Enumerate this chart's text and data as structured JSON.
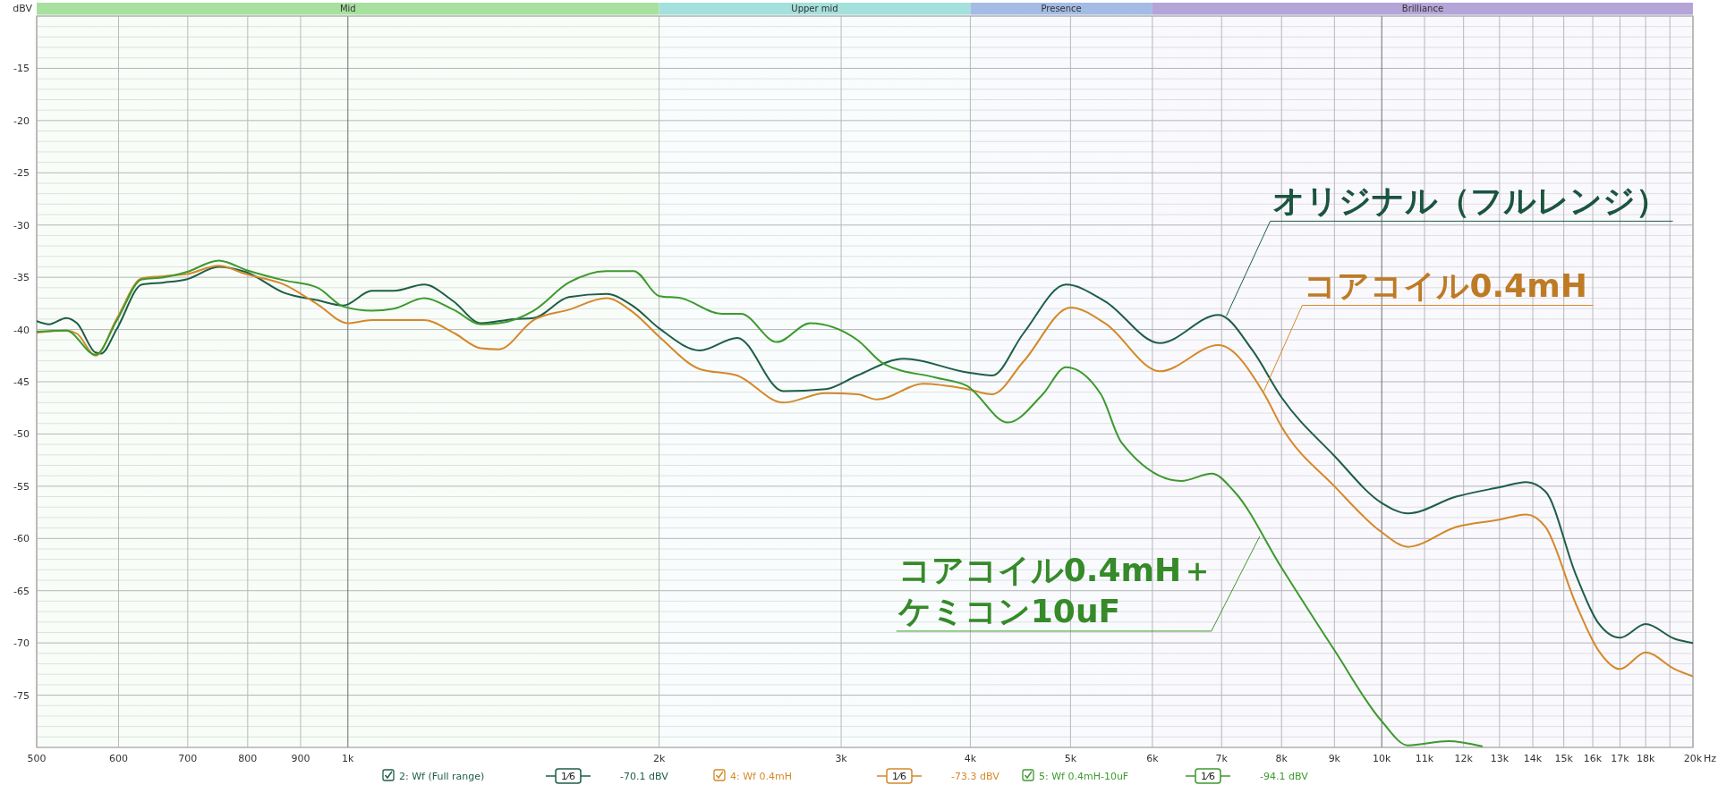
{
  "chart_data": {
    "type": "line",
    "ylabel": "dBV",
    "log": "x",
    "grid": true,
    "legend": "bottom",
    "xlim": [
      500,
      20000
    ],
    "ylim": [
      -80,
      -10
    ],
    "xticks": [
      500,
      600,
      700,
      800,
      900,
      {
        "value": 1000,
        "label": "1k"
      },
      {
        "value": 2000,
        "label": "2k"
      },
      {
        "value": 3000,
        "label": "3k"
      },
      {
        "value": 4000,
        "label": "4k"
      },
      {
        "value": 5000,
        "label": "5k"
      },
      {
        "value": 6000,
        "label": "6k"
      },
      {
        "value": 7000,
        "label": "7k"
      },
      {
        "value": 8000,
        "label": "8k"
      },
      {
        "value": 9000,
        "label": "9k"
      },
      {
        "value": 10000,
        "label": "10k"
      },
      {
        "value": 11000,
        "label": "11k"
      },
      {
        "value": 12000,
        "label": "12k"
      },
      {
        "value": 13000,
        "label": "13k"
      },
      {
        "value": 14000,
        "label": "14k"
      },
      {
        "value": 15000,
        "label": "15k"
      },
      {
        "value": 16000,
        "label": "16k"
      },
      {
        "value": 17000,
        "label": "17k"
      },
      {
        "value": 18000,
        "label": "18k"
      },
      {
        "value": 19000,
        "label": null
      },
      {
        "value": 20000,
        "label": "20k"
      }
    ],
    "xlabel": "Hz",
    "yticks": [
      {
        "value": -10,
        "label": null
      },
      {
        "value": -11,
        "label": null
      },
      {
        "value": -12,
        "label": null
      },
      {
        "value": -13,
        "label": null
      },
      {
        "value": -14,
        "label": null
      },
      -15,
      {
        "value": -16,
        "label": null
      },
      {
        "value": -17,
        "label": null
      },
      {
        "value": -18,
        "label": null
      },
      {
        "value": -19,
        "label": null
      },
      -20,
      {
        "value": -21,
        "label": null
      },
      {
        "value": -22,
        "label": null
      },
      {
        "value": -23,
        "label": null
      },
      {
        "value": -24,
        "label": null
      },
      -25,
      {
        "value": -26,
        "label": null
      },
      {
        "value": -27,
        "label": null
      },
      {
        "value": -28,
        "label": null
      },
      {
        "value": -29,
        "label": null
      },
      -30,
      {
        "value": -31,
        "label": null
      },
      {
        "value": -32,
        "label": null
      },
      {
        "value": -33,
        "label": null
      },
      {
        "value": -34,
        "label": null
      },
      -35,
      {
        "value": -36,
        "label": null
      },
      {
        "value": -37,
        "label": null
      },
      {
        "value": -38,
        "label": null
      },
      {
        "value": -39,
        "label": null
      },
      -40,
      {
        "value": -41,
        "label": null
      },
      {
        "value": -42,
        "label": null
      },
      {
        "value": -43,
        "label": null
      },
      {
        "value": -44,
        "label": null
      },
      -45,
      {
        "value": -46,
        "label": null
      },
      {
        "value": -47,
        "label": null
      },
      {
        "value": -48,
        "label": null
      },
      {
        "value": -49,
        "label": null
      },
      -50,
      {
        "value": -51,
        "label": null
      },
      {
        "value": -52,
        "label": null
      },
      {
        "value": -53,
        "label": null
      },
      {
        "value": -54,
        "label": null
      },
      -55,
      {
        "value": -56,
        "label": null
      },
      {
        "value": -57,
        "label": null
      },
      {
        "value": -58,
        "label": null
      },
      {
        "value": -59,
        "label": null
      },
      -60,
      {
        "value": -61,
        "label": null
      },
      {
        "value": -62,
        "label": null
      },
      {
        "value": -63,
        "label": null
      },
      {
        "value": -64,
        "label": null
      },
      -65,
      {
        "value": -66,
        "label": null
      },
      {
        "value": -67,
        "label": null
      },
      {
        "value": -68,
        "label": null
      },
      {
        "value": -69,
        "label": null
      },
      -70,
      {
        "value": -71,
        "label": null
      },
      {
        "value": -72,
        "label": null
      },
      {
        "value": -73,
        "label": null
      },
      {
        "value": -74,
        "label": null
      },
      -75,
      {
        "value": -76,
        "label": null
      },
      {
        "value": -77,
        "label": null
      },
      {
        "value": -78,
        "label": null
      },
      {
        "value": -79,
        "label": null
      },
      {
        "value": -80,
        "label": null
      }
    ],
    "bands": [
      {
        "axis": "x",
        "from": 500,
        "to": 2000,
        "label": "Mid",
        "color": "#a8e0a0"
      },
      {
        "axis": "x",
        "from": 2000,
        "to": 4000,
        "label": "Upper mid",
        "color": "#a4e0dc"
      },
      {
        "axis": "x",
        "from": 4000,
        "to": 6000,
        "label": "Presence",
        "color": "#a4bce4"
      },
      {
        "axis": "x",
        "from": 6000,
        "to": 20000,
        "label": "Brilliance",
        "color": "#b4a4d8"
      }
    ],
    "series": [
      {
        "name": "2: Wf (Full range)",
        "color": "#1e5e46",
        "x": [
          500,
          514,
          534,
          547,
          570,
          577,
          598,
          632,
          664,
          698,
          750,
          797,
          868,
          935,
          990,
          1055,
          1108,
          1185,
          1265,
          1345,
          1446,
          1512,
          1636,
          1778,
          1890,
          2001,
          2191,
          2380,
          2636,
          2898,
          3110,
          3450,
          3970,
          4200,
          4500,
          4950,
          5400,
          6100,
          6950,
          7500,
          8000,
          9000,
          10000,
          10600,
          11800,
          13000,
          13800,
          14400,
          15400,
          16200,
          17000,
          18000,
          19200,
          20000
        ],
        "values": [
          -39.2,
          -39.5,
          -38.9,
          -39.4,
          -42.2,
          -42.3,
          -39.9,
          -35.7,
          -35.5,
          -35.2,
          -34.0,
          -34.5,
          -36.5,
          -37.2,
          -37.7,
          -36.3,
          -36.3,
          -35.7,
          -37.3,
          -39.4,
          -39.0,
          -38.9,
          -36.9,
          -36.6,
          -37.8,
          -39.9,
          -42.0,
          -40.8,
          -45.9,
          -45.7,
          -44.4,
          -42.8,
          -44.1,
          -44.4,
          -40.4,
          -35.7,
          -37.3,
          -41.3,
          -38.6,
          -42.0,
          -46.5,
          -52.1,
          -56.6,
          -57.6,
          -56.0,
          -55.1,
          -54.6,
          -55.5,
          -63.4,
          -68.1,
          -69.5,
          -68.2,
          -69.6,
          -70.0
        ]
      },
      {
        "name": "4: Wf 0.4mH",
        "color": "#d4892a",
        "x": [
          500,
          534,
          547,
          570,
          598,
          632,
          664,
          698,
          750,
          797,
          868,
          935,
          1000,
          1055,
          1185,
          1265,
          1345,
          1400,
          1512,
          1636,
          1778,
          1890,
          2001,
          2191,
          2380,
          2636,
          2898,
          3110,
          3250,
          3600,
          3970,
          4200,
          4500,
          5000,
          5400,
          6100,
          6950,
          7700,
          8000,
          9000,
          10000,
          10600,
          11800,
          13000,
          13800,
          14400,
          15400,
          16200,
          17000,
          18000,
          19200,
          20000
        ],
        "values": [
          -40.3,
          -40.1,
          -40.4,
          -42.5,
          -38.9,
          -35.1,
          -34.9,
          -34.7,
          -33.9,
          -34.7,
          -35.7,
          -37.6,
          -39.4,
          -39.1,
          -39.1,
          -40.3,
          -41.8,
          -41.9,
          -39.1,
          -38.1,
          -37.0,
          -38.4,
          -40.7,
          -43.8,
          -44.4,
          -47.0,
          -46.1,
          -46.2,
          -46.7,
          -45.2,
          -45.7,
          -46.2,
          -43.1,
          -37.9,
          -39.4,
          -44.0,
          -41.5,
          -46.2,
          -49.3,
          -55.0,
          -59.4,
          -60.8,
          -58.9,
          -58.2,
          -57.7,
          -58.9,
          -66.2,
          -70.7,
          -72.5,
          -70.9,
          -72.5,
          -73.2
        ]
      },
      {
        "name": "5: Wf 0.4mH-10uF",
        "color": "#3c9a2e",
        "x": [
          500,
          534,
          570,
          598,
          632,
          664,
          698,
          750,
          797,
          868,
          935,
          990,
          1055,
          1108,
          1185,
          1265,
          1345,
          1400,
          1512,
          1636,
          1778,
          1890,
          2001,
          2100,
          2300,
          2400,
          2600,
          2800,
          3110,
          3300,
          3700,
          3970,
          4350,
          4700,
          4950,
          5350,
          5600,
          6400,
          6850,
          7200,
          8000,
          9000,
          10000,
          10600,
          11600,
          12500
        ],
        "values": [
          -40.2,
          -40.1,
          -42.4,
          -39.1,
          -35.2,
          -35.0,
          -34.5,
          -33.4,
          -34.3,
          -35.3,
          -36.0,
          -37.8,
          -38.2,
          -38.0,
          -37.0,
          -38.1,
          -39.5,
          -39.4,
          -38.2,
          -35.5,
          -34.4,
          -34.4,
          -36.8,
          -37.0,
          -38.5,
          -38.5,
          -41.2,
          -39.4,
          -41.0,
          -43.3,
          -44.6,
          -45.4,
          -48.9,
          -46.2,
          -43.6,
          -46.2,
          -50.8,
          -54.5,
          -53.8,
          -55.5,
          -62.8,
          -70.7,
          -77.5,
          -79.8,
          -79.4,
          -79.9
        ]
      }
    ],
    "annotations": [
      {
        "text": "オリジナル（フルレンジ）",
        "x": 7075,
        "y": -38.7
      },
      {
        "text": "コアコイル0.4mH",
        "x": 7690,
        "y": -45.9
      },
      {
        "text": "コアコイル0.4mH＋ケミコン10uF",
        "x": 7620,
        "y": -59.8
      },
      "1⁄6",
      "-70.1 dBV",
      "1⁄6",
      "-73.3 dBV",
      "1⁄6",
      "-94.1 dBV"
    ]
  }
}
